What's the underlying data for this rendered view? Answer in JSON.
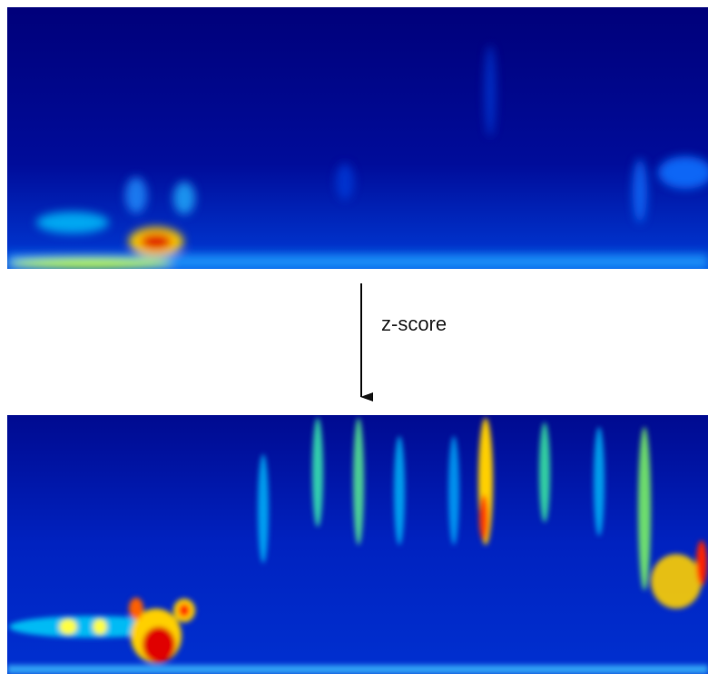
{
  "label": "z-score"
}
